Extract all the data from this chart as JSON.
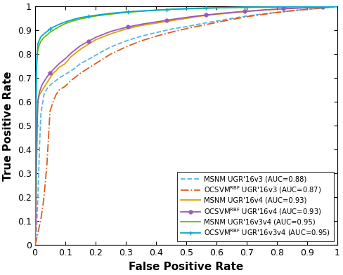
{
  "xlabel": "False Positive Rate",
  "ylabel": "True Positive Rate",
  "xlim": [
    0,
    1
  ],
  "ylim": [
    0,
    1
  ],
  "xticks": [
    0,
    0.1,
    0.2,
    0.3,
    0.4,
    0.5,
    0.6,
    0.7,
    0.8,
    0.9,
    1
  ],
  "yticks": [
    0,
    0.1,
    0.2,
    0.3,
    0.4,
    0.5,
    0.6,
    0.7,
    0.8,
    0.9,
    1
  ],
  "legend_loc": "lower right",
  "curves": [
    {
      "label": "MSNM UGR'16v3 (AUC=0.88)",
      "color": "#56B4E9",
      "linestyle": "--",
      "linewidth": 1.3,
      "marker": null,
      "key_points": [
        [
          0.0,
          0.0
        ],
        [
          0.005,
          0.05
        ],
        [
          0.01,
          0.2
        ],
        [
          0.015,
          0.4
        ],
        [
          0.02,
          0.55
        ],
        [
          0.03,
          0.63
        ],
        [
          0.04,
          0.655
        ],
        [
          0.05,
          0.67
        ],
        [
          0.06,
          0.68
        ],
        [
          0.07,
          0.69
        ],
        [
          0.08,
          0.7
        ],
        [
          0.1,
          0.715
        ],
        [
          0.12,
          0.73
        ],
        [
          0.15,
          0.76
        ],
        [
          0.18,
          0.78
        ],
        [
          0.2,
          0.795
        ],
        [
          0.25,
          0.83
        ],
        [
          0.3,
          0.855
        ],
        [
          0.35,
          0.875
        ],
        [
          0.4,
          0.89
        ],
        [
          0.45,
          0.905
        ],
        [
          0.5,
          0.915
        ],
        [
          0.55,
          0.928
        ],
        [
          0.6,
          0.938
        ],
        [
          0.65,
          0.95
        ],
        [
          0.7,
          0.96
        ],
        [
          0.75,
          0.968
        ],
        [
          0.8,
          0.975
        ],
        [
          0.85,
          0.982
        ],
        [
          0.9,
          0.988
        ],
        [
          0.95,
          0.993
        ],
        [
          1.0,
          1.0
        ]
      ]
    },
    {
      "label": "OCSVM$^{\\mathrm{RBF}}$ UGR'16v3 (AUC=0.87)",
      "color": "#E05C20",
      "linestyle": "-.",
      "linewidth": 1.3,
      "marker": null,
      "key_points": [
        [
          0.0,
          0.0
        ],
        [
          0.005,
          0.02
        ],
        [
          0.01,
          0.05
        ],
        [
          0.015,
          0.08
        ],
        [
          0.02,
          0.11
        ],
        [
          0.025,
          0.15
        ],
        [
          0.03,
          0.2
        ],
        [
          0.035,
          0.27
        ],
        [
          0.04,
          0.34
        ],
        [
          0.045,
          0.45
        ],
        [
          0.05,
          0.56
        ],
        [
          0.06,
          0.6
        ],
        [
          0.07,
          0.63
        ],
        [
          0.08,
          0.65
        ],
        [
          0.1,
          0.665
        ],
        [
          0.12,
          0.69
        ],
        [
          0.15,
          0.72
        ],
        [
          0.2,
          0.76
        ],
        [
          0.25,
          0.8
        ],
        [
          0.3,
          0.83
        ],
        [
          0.35,
          0.855
        ],
        [
          0.4,
          0.875
        ],
        [
          0.45,
          0.892
        ],
        [
          0.5,
          0.907
        ],
        [
          0.55,
          0.92
        ],
        [
          0.6,
          0.933
        ],
        [
          0.65,
          0.945
        ],
        [
          0.7,
          0.957
        ],
        [
          0.75,
          0.966
        ],
        [
          0.8,
          0.975
        ],
        [
          0.85,
          0.982
        ],
        [
          0.9,
          0.988
        ],
        [
          0.95,
          0.993
        ],
        [
          1.0,
          1.0
        ]
      ]
    },
    {
      "label": "MSNM UGR'16v4 (AUC=0.93)",
      "color": "#E0A000",
      "linestyle": "-",
      "linewidth": 1.3,
      "marker": null,
      "key_points": [
        [
          0.0,
          0.0
        ],
        [
          0.003,
          0.1
        ],
        [
          0.005,
          0.3
        ],
        [
          0.008,
          0.52
        ],
        [
          0.01,
          0.6
        ],
        [
          0.015,
          0.63
        ],
        [
          0.02,
          0.64
        ],
        [
          0.03,
          0.66
        ],
        [
          0.04,
          0.68
        ],
        [
          0.05,
          0.7
        ],
        [
          0.06,
          0.72
        ],
        [
          0.07,
          0.73
        ],
        [
          0.08,
          0.745
        ],
        [
          0.1,
          0.76
        ],
        [
          0.12,
          0.79
        ],
        [
          0.15,
          0.82
        ],
        [
          0.2,
          0.86
        ],
        [
          0.25,
          0.885
        ],
        [
          0.3,
          0.905
        ],
        [
          0.35,
          0.92
        ],
        [
          0.4,
          0.93
        ],
        [
          0.45,
          0.94
        ],
        [
          0.5,
          0.95
        ],
        [
          0.55,
          0.96
        ],
        [
          0.6,
          0.967
        ],
        [
          0.65,
          0.973
        ],
        [
          0.7,
          0.979
        ],
        [
          0.75,
          0.984
        ],
        [
          0.8,
          0.988
        ],
        [
          0.85,
          0.992
        ],
        [
          0.9,
          0.995
        ],
        [
          0.95,
          0.997
        ],
        [
          1.0,
          1.0
        ]
      ]
    },
    {
      "label": "OCSVM$^{\\mathrm{RBF}}$ UGR'16v4 (AUC=0.93)",
      "color": "#9B59B6",
      "linestyle": "-",
      "linewidth": 1.3,
      "marker": "o",
      "markersize": 3.5,
      "markevery": 0.12,
      "key_points": [
        [
          0.0,
          0.0
        ],
        [
          0.003,
          0.1
        ],
        [
          0.005,
          0.31
        ],
        [
          0.008,
          0.53
        ],
        [
          0.01,
          0.605
        ],
        [
          0.015,
          0.64
        ],
        [
          0.02,
          0.66
        ],
        [
          0.025,
          0.675
        ],
        [
          0.03,
          0.685
        ],
        [
          0.04,
          0.705
        ],
        [
          0.05,
          0.72
        ],
        [
          0.06,
          0.735
        ],
        [
          0.08,
          0.76
        ],
        [
          0.1,
          0.78
        ],
        [
          0.12,
          0.805
        ],
        [
          0.15,
          0.835
        ],
        [
          0.2,
          0.87
        ],
        [
          0.25,
          0.895
        ],
        [
          0.3,
          0.912
        ],
        [
          0.35,
          0.925
        ],
        [
          0.4,
          0.935
        ],
        [
          0.45,
          0.945
        ],
        [
          0.5,
          0.954
        ],
        [
          0.55,
          0.962
        ],
        [
          0.6,
          0.969
        ],
        [
          0.65,
          0.975
        ],
        [
          0.7,
          0.98
        ],
        [
          0.75,
          0.985
        ],
        [
          0.8,
          0.989
        ],
        [
          0.85,
          0.992
        ],
        [
          0.9,
          0.995
        ],
        [
          0.95,
          0.997
        ],
        [
          1.0,
          1.0
        ]
      ]
    },
    {
      "label": "MSNM UGR'16v3v4 (AUC=0.95)",
      "color": "#66BB00",
      "linestyle": "-",
      "linewidth": 1.3,
      "marker": null,
      "key_points": [
        [
          0.0,
          0.0
        ],
        [
          0.002,
          0.2
        ],
        [
          0.003,
          0.45
        ],
        [
          0.005,
          0.72
        ],
        [
          0.007,
          0.78
        ],
        [
          0.01,
          0.82
        ],
        [
          0.015,
          0.84
        ],
        [
          0.02,
          0.855
        ],
        [
          0.03,
          0.87
        ],
        [
          0.04,
          0.88
        ],
        [
          0.05,
          0.892
        ],
        [
          0.06,
          0.9
        ],
        [
          0.08,
          0.915
        ],
        [
          0.1,
          0.928
        ],
        [
          0.12,
          0.937
        ],
        [
          0.15,
          0.948
        ],
        [
          0.2,
          0.96
        ],
        [
          0.25,
          0.968
        ],
        [
          0.3,
          0.975
        ],
        [
          0.35,
          0.98
        ],
        [
          0.4,
          0.984
        ],
        [
          0.45,
          0.988
        ],
        [
          0.5,
          0.99
        ],
        [
          0.55,
          0.992
        ],
        [
          0.6,
          0.994
        ],
        [
          0.65,
          0.995
        ],
        [
          0.7,
          0.996
        ],
        [
          0.75,
          0.997
        ],
        [
          0.8,
          0.998
        ],
        [
          0.85,
          0.999
        ],
        [
          0.9,
          0.999
        ],
        [
          0.95,
          1.0
        ],
        [
          1.0,
          1.0
        ]
      ]
    },
    {
      "label": "OCSVM$^{\\mathrm{RBF}}$ UGR'16v3v4 (AUC=0.95)",
      "color": "#00AACC",
      "linestyle": "-",
      "linewidth": 1.3,
      "marker": "+",
      "markersize": 5,
      "markevery": 0.12,
      "key_points": [
        [
          0.0,
          0.0
        ],
        [
          0.002,
          0.2
        ],
        [
          0.003,
          0.46
        ],
        [
          0.005,
          0.73
        ],
        [
          0.007,
          0.79
        ],
        [
          0.01,
          0.845
        ],
        [
          0.015,
          0.86
        ],
        [
          0.02,
          0.873
        ],
        [
          0.03,
          0.885
        ],
        [
          0.04,
          0.895
        ],
        [
          0.05,
          0.905
        ],
        [
          0.06,
          0.913
        ],
        [
          0.08,
          0.925
        ],
        [
          0.1,
          0.935
        ],
        [
          0.12,
          0.943
        ],
        [
          0.15,
          0.953
        ],
        [
          0.2,
          0.963
        ],
        [
          0.25,
          0.971
        ],
        [
          0.3,
          0.977
        ],
        [
          0.35,
          0.981
        ],
        [
          0.4,
          0.985
        ],
        [
          0.45,
          0.988
        ],
        [
          0.5,
          0.991
        ],
        [
          0.55,
          0.993
        ],
        [
          0.6,
          0.994
        ],
        [
          0.65,
          0.996
        ],
        [
          0.7,
          0.997
        ],
        [
          0.75,
          0.997
        ],
        [
          0.8,
          0.998
        ],
        [
          0.85,
          0.999
        ],
        [
          0.9,
          0.999
        ],
        [
          0.95,
          1.0
        ],
        [
          1.0,
          1.0
        ]
      ]
    }
  ]
}
